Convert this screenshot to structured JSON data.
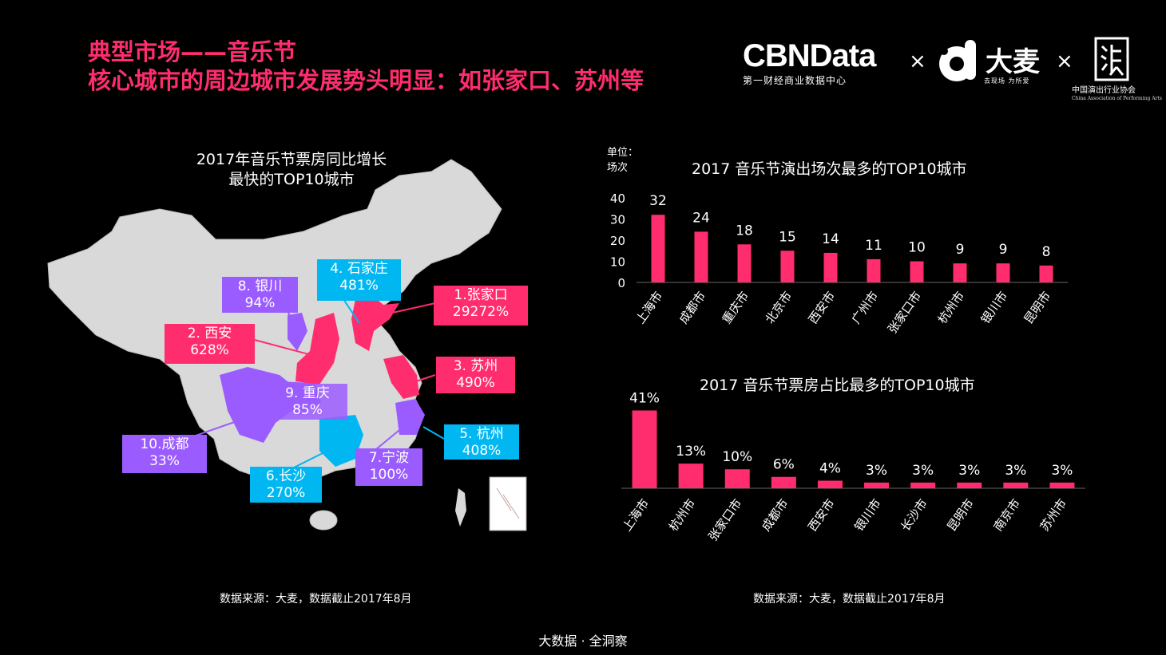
{
  "header": {
    "title_line1": "典型市场——音乐节",
    "title_line2": "核心城市的周边城市发展势头明显：如张家口、苏州等"
  },
  "logos": {
    "cbn_word": "CBNData",
    "cbn_sub": "第一财经商业数据中心",
    "separator": "×",
    "damai_word": "大麦",
    "damai_sub": "去现场 为所爱",
    "assoc_cn": "中国演出行业协会",
    "assoc_en": "China Association of Performing Arts"
  },
  "map": {
    "title_line1": "2017年音乐节票房同比增长",
    "title_line2": "最快的TOP10城市",
    "labels": [
      {
        "id": "zhangjiakou",
        "line1": "1.张家口",
        "line2": "29272%",
        "color": "pink"
      },
      {
        "id": "xian",
        "line1": "2. 西安",
        "line2": "628%",
        "color": "pink"
      },
      {
        "id": "suzhou",
        "line1": "3. 苏州",
        "line2": "490%",
        "color": "pink"
      },
      {
        "id": "shijiazhuang",
        "line1": "4. 石家庄",
        "line2": "481%",
        "color": "cyan"
      },
      {
        "id": "hangzhou",
        "line1": "5. 杭州",
        "line2": "408%",
        "color": "cyan"
      },
      {
        "id": "changsha",
        "line1": "6.长沙",
        "line2": "270%",
        "color": "cyan"
      },
      {
        "id": "ningbo",
        "line1": "7.宁波",
        "line2": "100%",
        "color": "purple"
      },
      {
        "id": "yinchuan",
        "line1": "8. 银川",
        "line2": "94%",
        "color": "purple"
      },
      {
        "id": "chongqing",
        "line1": "9. 重庆",
        "line2": "85%",
        "color": "purple"
      },
      {
        "id": "chengdu",
        "line1": "10.成都",
        "line2": "33%",
        "color": "purple"
      }
    ]
  },
  "colors": {
    "accent": "#ff2d6e",
    "cyan": "#00b7f2",
    "purple": "#9b5cff",
    "map_gray": "#d9d9d9",
    "background": "#000000"
  },
  "chart_data": [
    {
      "type": "bar",
      "title": "2017 音乐节演出场次最多的TOP10城市",
      "unit_label": "单位：场次",
      "categories": [
        "上海市",
        "成都市",
        "重庆市",
        "北京市",
        "西安市",
        "广州市",
        "张家口市",
        "杭州市",
        "银川市",
        "昆明市"
      ],
      "values": [
        32,
        24,
        18,
        15,
        14,
        11,
        10,
        9,
        9,
        8
      ],
      "ylim": [
        0,
        40
      ],
      "yticks": [
        0,
        10,
        20,
        30,
        40
      ],
      "grid": false,
      "value_labels": [
        "32",
        "24",
        "18",
        "15",
        "14",
        "11",
        "10",
        "9",
        "9",
        "8"
      ]
    },
    {
      "type": "bar",
      "title": "2017 音乐节票房占比最多的TOP10城市",
      "categories": [
        "上海市",
        "杭州市",
        "张家口市",
        "成都市",
        "西安市",
        "银川市",
        "长沙市",
        "昆明市",
        "南京市",
        "苏州市"
      ],
      "values": [
        41,
        13,
        10,
        6,
        4,
        3,
        3,
        3,
        3,
        3
      ],
      "ylim": [
        0,
        45
      ],
      "grid": false,
      "value_labels": [
        "41%",
        "13%",
        "10%",
        "6%",
        "4%",
        "3%",
        "3%",
        "3%",
        "3%",
        "3%"
      ]
    }
  ],
  "sources": {
    "left": "数据来源：大麦，数据截止2017年8月",
    "right": "数据来源：大麦，数据截止2017年8月"
  },
  "footer": "大数据 · 全洞察"
}
